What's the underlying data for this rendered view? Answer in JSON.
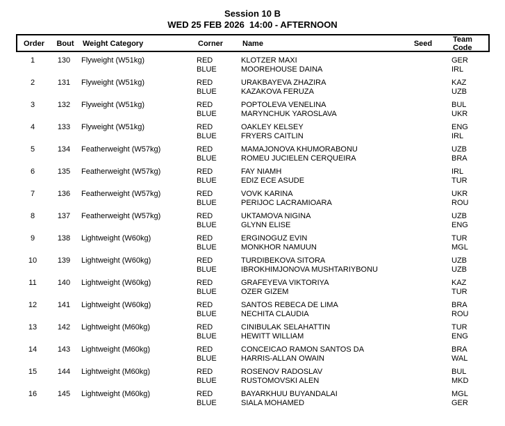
{
  "header": {
    "session": "Session 10 B",
    "datetime": "WED 25 FEB 2026  14:00 - AFTERNOON"
  },
  "table": {
    "headers": {
      "order": "Order",
      "bout": "Bout",
      "weight_category": "Weight Category",
      "corner": "Corner",
      "name": "Name",
      "seed": "Seed",
      "team_code": "Team Code"
    },
    "bouts": [
      {
        "order": "1",
        "bout": "130",
        "weight_category": "Flyweight (W51kg)",
        "red": {
          "corner": "RED",
          "name": "KLOTZER MAXI",
          "team": "GER"
        },
        "blue": {
          "corner": "BLUE",
          "name": "MOOREHOUSE DAINA",
          "team": "IRL"
        }
      },
      {
        "order": "2",
        "bout": "131",
        "weight_category": "Flyweight (W51kg)",
        "red": {
          "corner": "RED",
          "name": "URAKBAYEVA ZHAZIRA",
          "team": "KAZ"
        },
        "blue": {
          "corner": "BLUE",
          "name": "KAZAKOVA FERUZA",
          "team": "UZB"
        }
      },
      {
        "order": "3",
        "bout": "132",
        "weight_category": "Flyweight (W51kg)",
        "red": {
          "corner": "RED",
          "name": "POPTOLEVA VENELINA",
          "team": "BUL"
        },
        "blue": {
          "corner": "BLUE",
          "name": "MARYNCHUK YAROSLAVA",
          "team": "UKR"
        }
      },
      {
        "order": "4",
        "bout": "133",
        "weight_category": "Flyweight (W51kg)",
        "red": {
          "corner": "RED",
          "name": "OAKLEY KELSEY",
          "team": "ENG"
        },
        "blue": {
          "corner": "BLUE",
          "name": "FRYERS CAITLIN",
          "team": "IRL"
        }
      },
      {
        "order": "5",
        "bout": "134",
        "weight_category": "Featherweight (W57kg)",
        "red": {
          "corner": "RED",
          "name": "MAMAJONOVA KHUMORABONU",
          "team": "UZB"
        },
        "blue": {
          "corner": "BLUE",
          "name": "ROMEU JUCIELEN CERQUEIRA",
          "team": "BRA"
        }
      },
      {
        "order": "6",
        "bout": "135",
        "weight_category": "Featherweight (W57kg)",
        "red": {
          "corner": "RED",
          "name": "FAY NIAMH",
          "team": "IRL"
        },
        "blue": {
          "corner": "BLUE",
          "name": "EDIZ ECE ASUDE",
          "team": "TUR"
        }
      },
      {
        "order": "7",
        "bout": "136",
        "weight_category": "Featherweight (W57kg)",
        "red": {
          "corner": "RED",
          "name": "VOVK KARINA",
          "team": "UKR"
        },
        "blue": {
          "corner": "BLUE",
          "name": "PERIJOC LACRAMIOARA",
          "team": "ROU"
        }
      },
      {
        "order": "8",
        "bout": "137",
        "weight_category": "Featherweight (W57kg)",
        "red": {
          "corner": "RED",
          "name": "UKTAMOVA NIGINA",
          "team": "UZB"
        },
        "blue": {
          "corner": "BLUE",
          "name": "GLYNN ELISE",
          "team": "ENG"
        }
      },
      {
        "order": "9",
        "bout": "138",
        "weight_category": "Lightweight (W60kg)",
        "red": {
          "corner": "RED",
          "name": "ERGINOGUZ EVIN",
          "team": "TUR"
        },
        "blue": {
          "corner": "BLUE",
          "name": "MONKHOR NAMUUN",
          "team": "MGL"
        }
      },
      {
        "order": "10",
        "bout": "139",
        "weight_category": "Lightweight (W60kg)",
        "red": {
          "corner": "RED",
          "name": "TURDIBEKOVA SITORA",
          "team": "UZB"
        },
        "blue": {
          "corner": "BLUE",
          "name": "IBROKHIMJONOVA MUSHTARIYBONU",
          "team": "UZB"
        }
      },
      {
        "order": "11",
        "bout": "140",
        "weight_category": "Lightweight (W60kg)",
        "red": {
          "corner": "RED",
          "name": "GRAFEYEVA VIKTORIYA",
          "team": "KAZ"
        },
        "blue": {
          "corner": "BLUE",
          "name": "OZER GIZEM",
          "team": "TUR"
        }
      },
      {
        "order": "12",
        "bout": "141",
        "weight_category": "Lightweight (W60kg)",
        "red": {
          "corner": "RED",
          "name": "SANTOS REBECA DE LIMA",
          "team": "BRA"
        },
        "blue": {
          "corner": "BLUE",
          "name": "NECHITA CLAUDIA",
          "team": "ROU"
        }
      },
      {
        "order": "13",
        "bout": "142",
        "weight_category": "Lightweight (M60kg)",
        "red": {
          "corner": "RED",
          "name": "CINIBULAK SELAHATTIN",
          "team": "TUR"
        },
        "blue": {
          "corner": "BLUE",
          "name": "HEWITT WILLIAM",
          "team": "ENG"
        }
      },
      {
        "order": "14",
        "bout": "143",
        "weight_category": "Lightweight (M60kg)",
        "red": {
          "corner": "RED",
          "name": "CONCEICAO RAMON SANTOS DA",
          "team": "BRA"
        },
        "blue": {
          "corner": "BLUE",
          "name": "HARRIS-ALLAN OWAIN",
          "team": "WAL"
        }
      },
      {
        "order": "15",
        "bout": "144",
        "weight_category": "Lightweight (M60kg)",
        "red": {
          "corner": "RED",
          "name": "ROSENOV RADOSLAV",
          "team": "BUL"
        },
        "blue": {
          "corner": "BLUE",
          "name": "RUSTOMOVSKI ALEN",
          "team": "MKD"
        }
      },
      {
        "order": "16",
        "bout": "145",
        "weight_category": "Lightweight (M60kg)",
        "red": {
          "corner": "RED",
          "name": "BAYARKHUU BUYANDALAI",
          "team": "MGL"
        },
        "blue": {
          "corner": "BLUE",
          "name": "SIALA MOHAMED",
          "team": "GER"
        }
      }
    ]
  }
}
